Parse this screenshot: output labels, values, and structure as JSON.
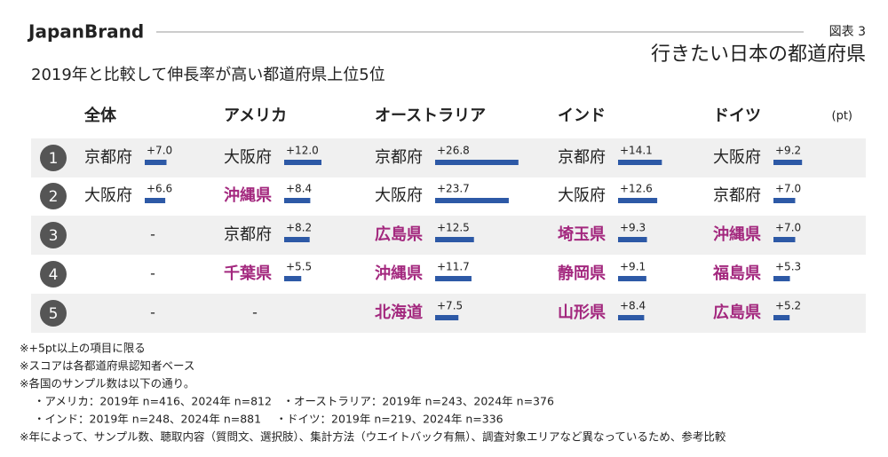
{
  "header": {
    "brand": "JapanBrand",
    "figure": "図表 3",
    "title": "行きたい日本の都道府県",
    "subtitle": "2019年と比較して伸長率が高い都道府県上位5位"
  },
  "colors": {
    "bar": "#2d59a6",
    "highlight": "#a3287e",
    "rank": "#555555",
    "band": "#f0f0f0"
  },
  "table": {
    "columns": [
      "全体",
      "アメリカ",
      "オーストラリア",
      "インド",
      "ドイツ"
    ],
    "unit": "(pt)",
    "rows": [
      {
        "rank": "1",
        "cells": [
          {
            "name": "京都府",
            "value": 7.0,
            "label": "+7.0",
            "highlight": false
          },
          {
            "name": "大阪府",
            "value": 12.0,
            "label": "+12.0",
            "highlight": false
          },
          {
            "name": "京都府",
            "value": 26.8,
            "label": "+26.8",
            "highlight": false
          },
          {
            "name": "京都府",
            "value": 14.1,
            "label": "+14.1",
            "highlight": false
          },
          {
            "name": "大阪府",
            "value": 9.2,
            "label": "+9.2",
            "highlight": false
          }
        ]
      },
      {
        "rank": "2",
        "cells": [
          {
            "name": "大阪府",
            "value": 6.6,
            "label": "+6.6",
            "highlight": false
          },
          {
            "name": "沖縄県",
            "value": 8.4,
            "label": "+8.4",
            "highlight": true
          },
          {
            "name": "大阪府",
            "value": 23.7,
            "label": "+23.7",
            "highlight": false
          },
          {
            "name": "大阪府",
            "value": 12.6,
            "label": "+12.6",
            "highlight": false
          },
          {
            "name": "京都府",
            "value": 7.0,
            "label": "+7.0",
            "highlight": false
          }
        ]
      },
      {
        "rank": "3",
        "cells": [
          {
            "name": "-"
          },
          {
            "name": "京都府",
            "value": 8.2,
            "label": "+8.2",
            "highlight": false
          },
          {
            "name": "広島県",
            "value": 12.5,
            "label": "+12.5",
            "highlight": true
          },
          {
            "name": "埼玉県",
            "value": 9.3,
            "label": "+9.3",
            "highlight": true
          },
          {
            "name": "沖縄県",
            "value": 7.0,
            "label": "+7.0",
            "highlight": true
          }
        ]
      },
      {
        "rank": "4",
        "cells": [
          {
            "name": "-"
          },
          {
            "name": "千葉県",
            "value": 5.5,
            "label": "+5.5",
            "highlight": true
          },
          {
            "name": "沖縄県",
            "value": 11.7,
            "label": "+11.7",
            "highlight": true
          },
          {
            "name": "静岡県",
            "value": 9.1,
            "label": "+9.1",
            "highlight": true
          },
          {
            "name": "福島県",
            "value": 5.3,
            "label": "+5.3",
            "highlight": true
          }
        ]
      },
      {
        "rank": "5",
        "cells": [
          {
            "name": "-"
          },
          {
            "name": "-"
          },
          {
            "name": "北海道",
            "value": 7.5,
            "label": "+7.5",
            "highlight": true
          },
          {
            "name": "山形県",
            "value": 8.4,
            "label": "+8.4",
            "highlight": true
          },
          {
            "name": "広島県",
            "value": 5.2,
            "label": "+5.2",
            "highlight": true
          }
        ]
      }
    ]
  },
  "notes": [
    "※+5pt以上の項目に限る",
    "※スコアは各都道府県認知者ベース",
    "※各国のサンプル数は以下の通り。",
    "・アメリカ：2019年 n=416、2024年 n=812　・オーストラリア：2019年 n=243、2024年 n=376",
    "・インド：2019年 n=248、2024年 n=881　 ・ドイツ：2019年 n=219、2024年 n=336",
    "※年によって、サンプル数、聴取内容（質問文、選択肢）、集計方法（ウエイトバック有無）、調査対象エリアなど異なっているため、参考比較"
  ]
}
